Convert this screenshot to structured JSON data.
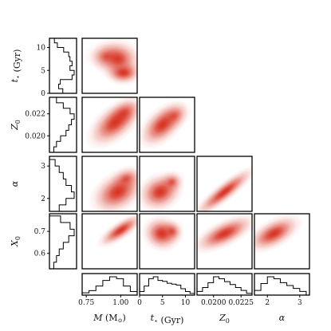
{
  "chart_data": {
    "type": "corner",
    "parameters": [
      {
        "key": "t",
        "symbol": "t",
        "sub": "⋆",
        "unit": " (Gyr)",
        "range": [
          0,
          12
        ],
        "ticks": [
          0,
          5,
          10
        ],
        "tick_labels": [
          "0",
          "5",
          "10"
        ]
      },
      {
        "key": "Z0",
        "symbol": "Z",
        "sub": "0",
        "unit": "",
        "range": [
          0.0185,
          0.0235
        ],
        "ticks": [
          0.02,
          0.022
        ],
        "tick_labels": [
          "0.020",
          "0.022"
        ],
        "bottom_ticks": [
          0.02,
          0.0225
        ],
        "bottom_tick_labels": [
          "0.0200",
          "0.0225"
        ]
      },
      {
        "key": "alpha",
        "symbol": "α",
        "sub": "",
        "unit": "",
        "range": [
          1.6,
          3.3
        ],
        "ticks": [
          2,
          3
        ],
        "tick_labels": [
          "2",
          "3"
        ]
      },
      {
        "key": "X0",
        "symbol": "X",
        "sub": "0",
        "unit": "",
        "range": [
          0.53,
          0.78
        ],
        "ticks": [
          0.6,
          0.7
        ],
        "tick_labels": [
          "0.6",
          "0.7"
        ]
      }
    ],
    "mass": {
      "key": "M",
      "symbol": "M",
      "sub": "",
      "unit": " (M",
      "unit_tail": ")",
      "range": [
        0.72,
        1.12
      ],
      "ticks": [
        0.75,
        1.0
      ],
      "tick_labels": [
        "0.75",
        "1.00"
      ]
    },
    "marginals_left": {
      "t": {
        "edges": [
          0,
          1,
          2,
          3,
          4,
          5,
          6,
          7,
          8,
          9,
          10,
          11,
          12
        ],
        "counts": [
          0.28,
          0.18,
          0.22,
          0.5,
          0.55,
          0.45,
          0.5,
          0.45,
          0.42,
          0.3,
          0.15,
          0.08
        ]
      },
      "Z0": {
        "edges": [
          0.0185,
          0.019,
          0.0195,
          0.02,
          0.0205,
          0.021,
          0.0215,
          0.022,
          0.0225,
          0.023,
          0.0235
        ],
        "counts": [
          0.1,
          0.2,
          0.35,
          0.55,
          0.65,
          0.75,
          0.85,
          0.7,
          0.45,
          0.2
        ]
      },
      "alpha": {
        "edges": [
          1.6,
          1.8,
          2.0,
          2.2,
          2.4,
          2.6,
          2.8,
          3.0,
          3.2
        ],
        "counts": [
          0.3,
          0.55,
          0.85,
          0.75,
          0.55,
          0.45,
          0.3,
          0.15
        ]
      },
      "X0": {
        "edges": [
          0.53,
          0.56,
          0.59,
          0.62,
          0.65,
          0.68,
          0.71,
          0.74,
          0.77
        ],
        "counts": [
          0.1,
          0.2,
          0.3,
          0.45,
          0.65,
          0.85,
          0.7,
          0.35
        ]
      }
    },
    "marginals_bottom": {
      "M": {
        "edges": [
          0.72,
          0.77,
          0.82,
          0.87,
          0.92,
          0.97,
          1.02,
          1.07,
          1.12
        ],
        "counts": [
          0.08,
          0.2,
          0.45,
          0.75,
          0.95,
          0.85,
          0.45,
          0.15
        ]
      },
      "t": {
        "edges": [
          0,
          1,
          2,
          3,
          4,
          5,
          6,
          7,
          8,
          9,
          10,
          11,
          12
        ],
        "counts": [
          0.15,
          0.45,
          0.85,
          0.95,
          0.75,
          0.7,
          0.6,
          0.55,
          0.5,
          0.3,
          0.15,
          0.05
        ]
      },
      "Z0": {
        "edges": [
          0.0185,
          0.019,
          0.0195,
          0.02,
          0.0205,
          0.021,
          0.0215,
          0.022,
          0.0225,
          0.023,
          0.0235
        ],
        "counts": [
          0.15,
          0.35,
          0.6,
          0.9,
          0.8,
          0.65,
          0.5,
          0.35,
          0.2,
          0.05
        ]
      },
      "alpha": {
        "edges": [
          1.6,
          1.8,
          2.0,
          2.2,
          2.4,
          2.6,
          2.8,
          3.0,
          3.2
        ],
        "counts": [
          0.2,
          0.55,
          0.9,
          0.8,
          0.6,
          0.45,
          0.3,
          0.15
        ]
      }
    },
    "density_panels": [
      {
        "row": "t",
        "col": "M",
        "blobs": [
          [
            0.98,
            7.5,
            0.08,
            2.0,
            -0.2,
            0.85
          ],
          [
            1.02,
            4.5,
            0.06,
            1.2,
            0.0,
            1.0
          ],
          [
            0.9,
            8.0,
            0.07,
            1.5,
            0.0,
            0.5
          ]
        ]
      },
      {
        "row": "Z0",
        "col": "M",
        "blobs": [
          [
            0.96,
            0.0212,
            0.08,
            0.0012,
            0.7,
            1.0
          ],
          [
            1.02,
            0.022,
            0.05,
            0.0008,
            0.6,
            0.7
          ]
        ]
      },
      {
        "row": "Z0",
        "col": "t",
        "blobs": [
          [
            5.0,
            0.021,
            2.0,
            0.0013,
            0.6,
            1.0
          ],
          [
            7.5,
            0.0218,
            1.5,
            0.0008,
            0.5,
            0.5
          ]
        ]
      },
      {
        "row": "alpha",
        "col": "M",
        "blobs": [
          [
            0.98,
            2.2,
            0.08,
            0.35,
            0.6,
            1.0
          ],
          [
            1.04,
            2.6,
            0.05,
            0.2,
            0.5,
            0.55
          ]
        ]
      },
      {
        "row": "alpha",
        "col": "t",
        "blobs": [
          [
            4.5,
            2.2,
            2.0,
            0.35,
            0.4,
            1.0
          ],
          [
            7.0,
            2.5,
            1.2,
            0.25,
            0.3,
            0.55
          ]
        ]
      },
      {
        "row": "alpha",
        "col": "Z0",
        "blobs": [
          [
            0.021,
            2.2,
            0.0012,
            0.35,
            0.93,
            1.0
          ]
        ]
      },
      {
        "row": "X0",
        "col": "M",
        "blobs": [
          [
            1.0,
            0.705,
            0.07,
            0.035,
            0.85,
            1.0
          ]
        ]
      },
      {
        "row": "X0",
        "col": "t",
        "blobs": [
          [
            4.8,
            0.69,
            1.8,
            0.045,
            -0.3,
            1.0
          ],
          [
            7.0,
            0.7,
            1.2,
            0.03,
            -0.2,
            0.6
          ]
        ]
      },
      {
        "row": "X0",
        "col": "Z0",
        "blobs": [
          [
            0.021,
            0.69,
            0.0012,
            0.04,
            0.75,
            1.0
          ]
        ]
      },
      {
        "row": "X0",
        "col": "alpha",
        "blobs": [
          [
            2.2,
            0.69,
            0.35,
            0.04,
            0.7,
            1.0
          ]
        ]
      }
    ],
    "colors": {
      "density": "#d7301f",
      "hist": "#000000"
    }
  }
}
